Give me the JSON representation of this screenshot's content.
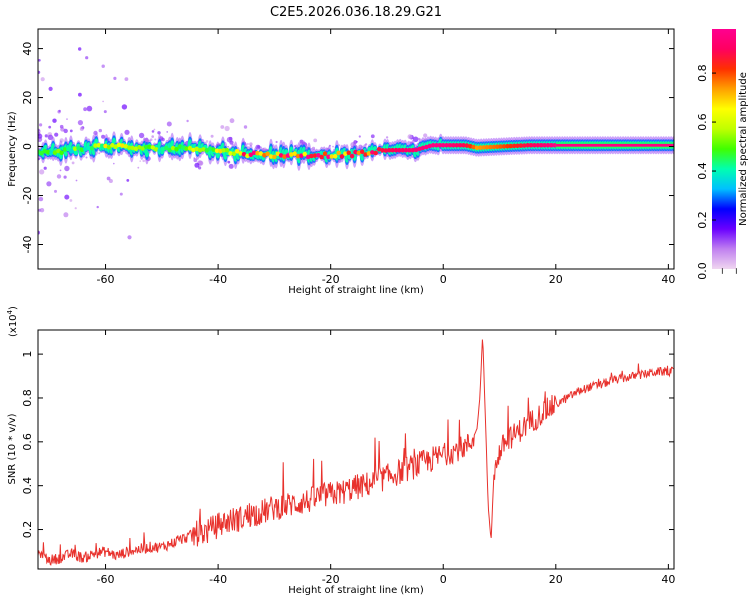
{
  "title": "C2E5.2026.036.18.29.G21",
  "chart_data": [
    {
      "type": "heatmap",
      "xlabel": "Height of straight line (km)",
      "ylabel": "Frequency (Hz)",
      "xlim": [
        -72,
        41
      ],
      "ylim": [
        -50,
        48
      ],
      "xticks": [
        -60,
        -40,
        -20,
        0,
        20,
        40
      ],
      "yticks": [
        -40,
        -20,
        0,
        20,
        40
      ],
      "xtick_labels": [
        "-60",
        "-40",
        "-20",
        "0",
        "20",
        "40"
      ],
      "ytick_labels": [
        "-40",
        "-20",
        "0",
        "20",
        "40"
      ],
      "ridge": {
        "x": [
          -72,
          -66,
          -60,
          -55,
          -50,
          -45,
          -40,
          -35,
          -30,
          -25,
          -20,
          -15,
          -10,
          -5,
          -2,
          0,
          4,
          6,
          10,
          15,
          20,
          30,
          41
        ],
        "freq": [
          -2.5,
          -1.5,
          0.5,
          -0.5,
          -1,
          -0.5,
          -1.5,
          -3,
          -3.5,
          -3.5,
          -3.5,
          -3,
          -1.5,
          -1.5,
          0.5,
          0.5,
          0.5,
          -0.5,
          0,
          0.5,
          0.5,
          0.5,
          0.5
        ],
        "amplitude": [
          0.45,
          0.5,
          0.6,
          0.6,
          0.55,
          0.55,
          0.6,
          0.85,
          0.9,
          0.92,
          0.9,
          0.85,
          0.9,
          0.95,
          0.98,
          0.98,
          0.9,
          0.75,
          0.8,
          0.9,
          0.98,
          0.98,
          0.98
        ]
      }
    },
    {
      "type": "colorbar",
      "label": "Normalized spectral amplitude",
      "range": [
        0,
        0.98
      ],
      "ticks": [
        0.2,
        0.4,
        0.6,
        0.8
      ],
      "tick_labels": [
        "0.2",
        "0.4",
        "0.6",
        "0.8"
      ],
      "edge_labels": [
        "0.0",
        "_",
        "_"
      ],
      "colors": [
        "#f0d6f0",
        "#c080f0",
        "#6a00ff",
        "#0000ff",
        "#00c0ff",
        "#00ffb0",
        "#40ff00",
        "#c0ff00",
        "#ffff00",
        "#ffa000",
        "#ff3000",
        "#ff0060",
        "#ff0090"
      ]
    },
    {
      "type": "line",
      "xlabel": "Height of straight line (km)",
      "ylabel": "SNR (10 * v/v)",
      "scale_label": "(x10",
      "scale_exp": "4",
      "xlim": [
        -72,
        41
      ],
      "ylim": [
        0.02,
        1.11
      ],
      "xticks": [
        -60,
        -40,
        -20,
        0,
        20,
        40
      ],
      "yticks": [
        0.2,
        0.4,
        0.6,
        0.8,
        1
      ],
      "xtick_labels": [
        "-60",
        "-40",
        "-20",
        "0",
        "20",
        "40"
      ],
      "ytick_labels": [
        "0.2",
        "0.4",
        "0.6",
        "0.8",
        "1"
      ],
      "color": "#e8312c",
      "series": [
        {
          "name": "SNR",
          "x": [
            -72,
            -70,
            -68,
            -66,
            -64,
            -62,
            -60,
            -58,
            -56,
            -54,
            -52,
            -50,
            -48,
            -46,
            -44,
            -42,
            -40,
            -38,
            -36,
            -34,
            -32,
            -30,
            -28,
            -26,
            -24,
            -22,
            -20,
            -18,
            -16,
            -14,
            -12,
            -10,
            -8,
            -6,
            -4,
            -2,
            0,
            2,
            4,
            5,
            6,
            6.5,
            7,
            7.5,
            8,
            8.5,
            9,
            10,
            11,
            12,
            14,
            16,
            18,
            20,
            22,
            24,
            26,
            28,
            30,
            32,
            34,
            36,
            38,
            40,
            41
          ],
          "y": [
            0.09,
            0.06,
            0.07,
            0.09,
            0.07,
            0.09,
            0.1,
            0.08,
            0.1,
            0.11,
            0.12,
            0.12,
            0.14,
            0.16,
            0.18,
            0.19,
            0.22,
            0.24,
            0.25,
            0.27,
            0.28,
            0.3,
            0.31,
            0.32,
            0.33,
            0.35,
            0.36,
            0.37,
            0.39,
            0.4,
            0.42,
            0.44,
            0.46,
            0.48,
            0.5,
            0.52,
            0.54,
            0.56,
            0.58,
            0.6,
            0.66,
            0.8,
            1.09,
            0.7,
            0.3,
            0.15,
            0.45,
            0.55,
            0.6,
            0.62,
            0.66,
            0.7,
            0.74,
            0.77,
            0.8,
            0.83,
            0.85,
            0.86,
            0.88,
            0.89,
            0.9,
            0.91,
            0.92,
            0.92,
            0.92
          ]
        }
      ]
    }
  ]
}
